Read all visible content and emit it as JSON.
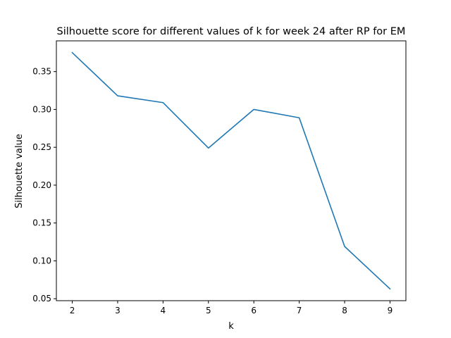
{
  "chart_data": {
    "type": "line",
    "title": "Silhouette score for different values of k for week 24 after RP for EM",
    "xlabel": "k",
    "ylabel": "Silhouette value",
    "x": [
      2,
      3,
      4,
      5,
      6,
      7,
      8,
      9
    ],
    "series": [
      {
        "values": [
          0.375,
          0.318,
          0.309,
          0.249,
          0.3,
          0.289,
          0.119,
          0.063
        ],
        "color": "#1f77b4"
      }
    ],
    "xlim": [
      1.65,
      9.35
    ],
    "ylim": [
      0.0474,
      0.3906
    ],
    "x_ticks": [
      2,
      3,
      4,
      5,
      6,
      7,
      8,
      9
    ],
    "x_tick_labels": [
      "2",
      "3",
      "4",
      "5",
      "6",
      "7",
      "8",
      "9"
    ],
    "y_ticks": [
      0.05,
      0.1,
      0.15,
      0.2,
      0.25,
      0.3,
      0.35
    ],
    "y_tick_labels": [
      "0.05",
      "0.10",
      "0.15",
      "0.20",
      "0.25",
      "0.30",
      "0.35"
    ],
    "grid": false,
    "legend": "none"
  }
}
